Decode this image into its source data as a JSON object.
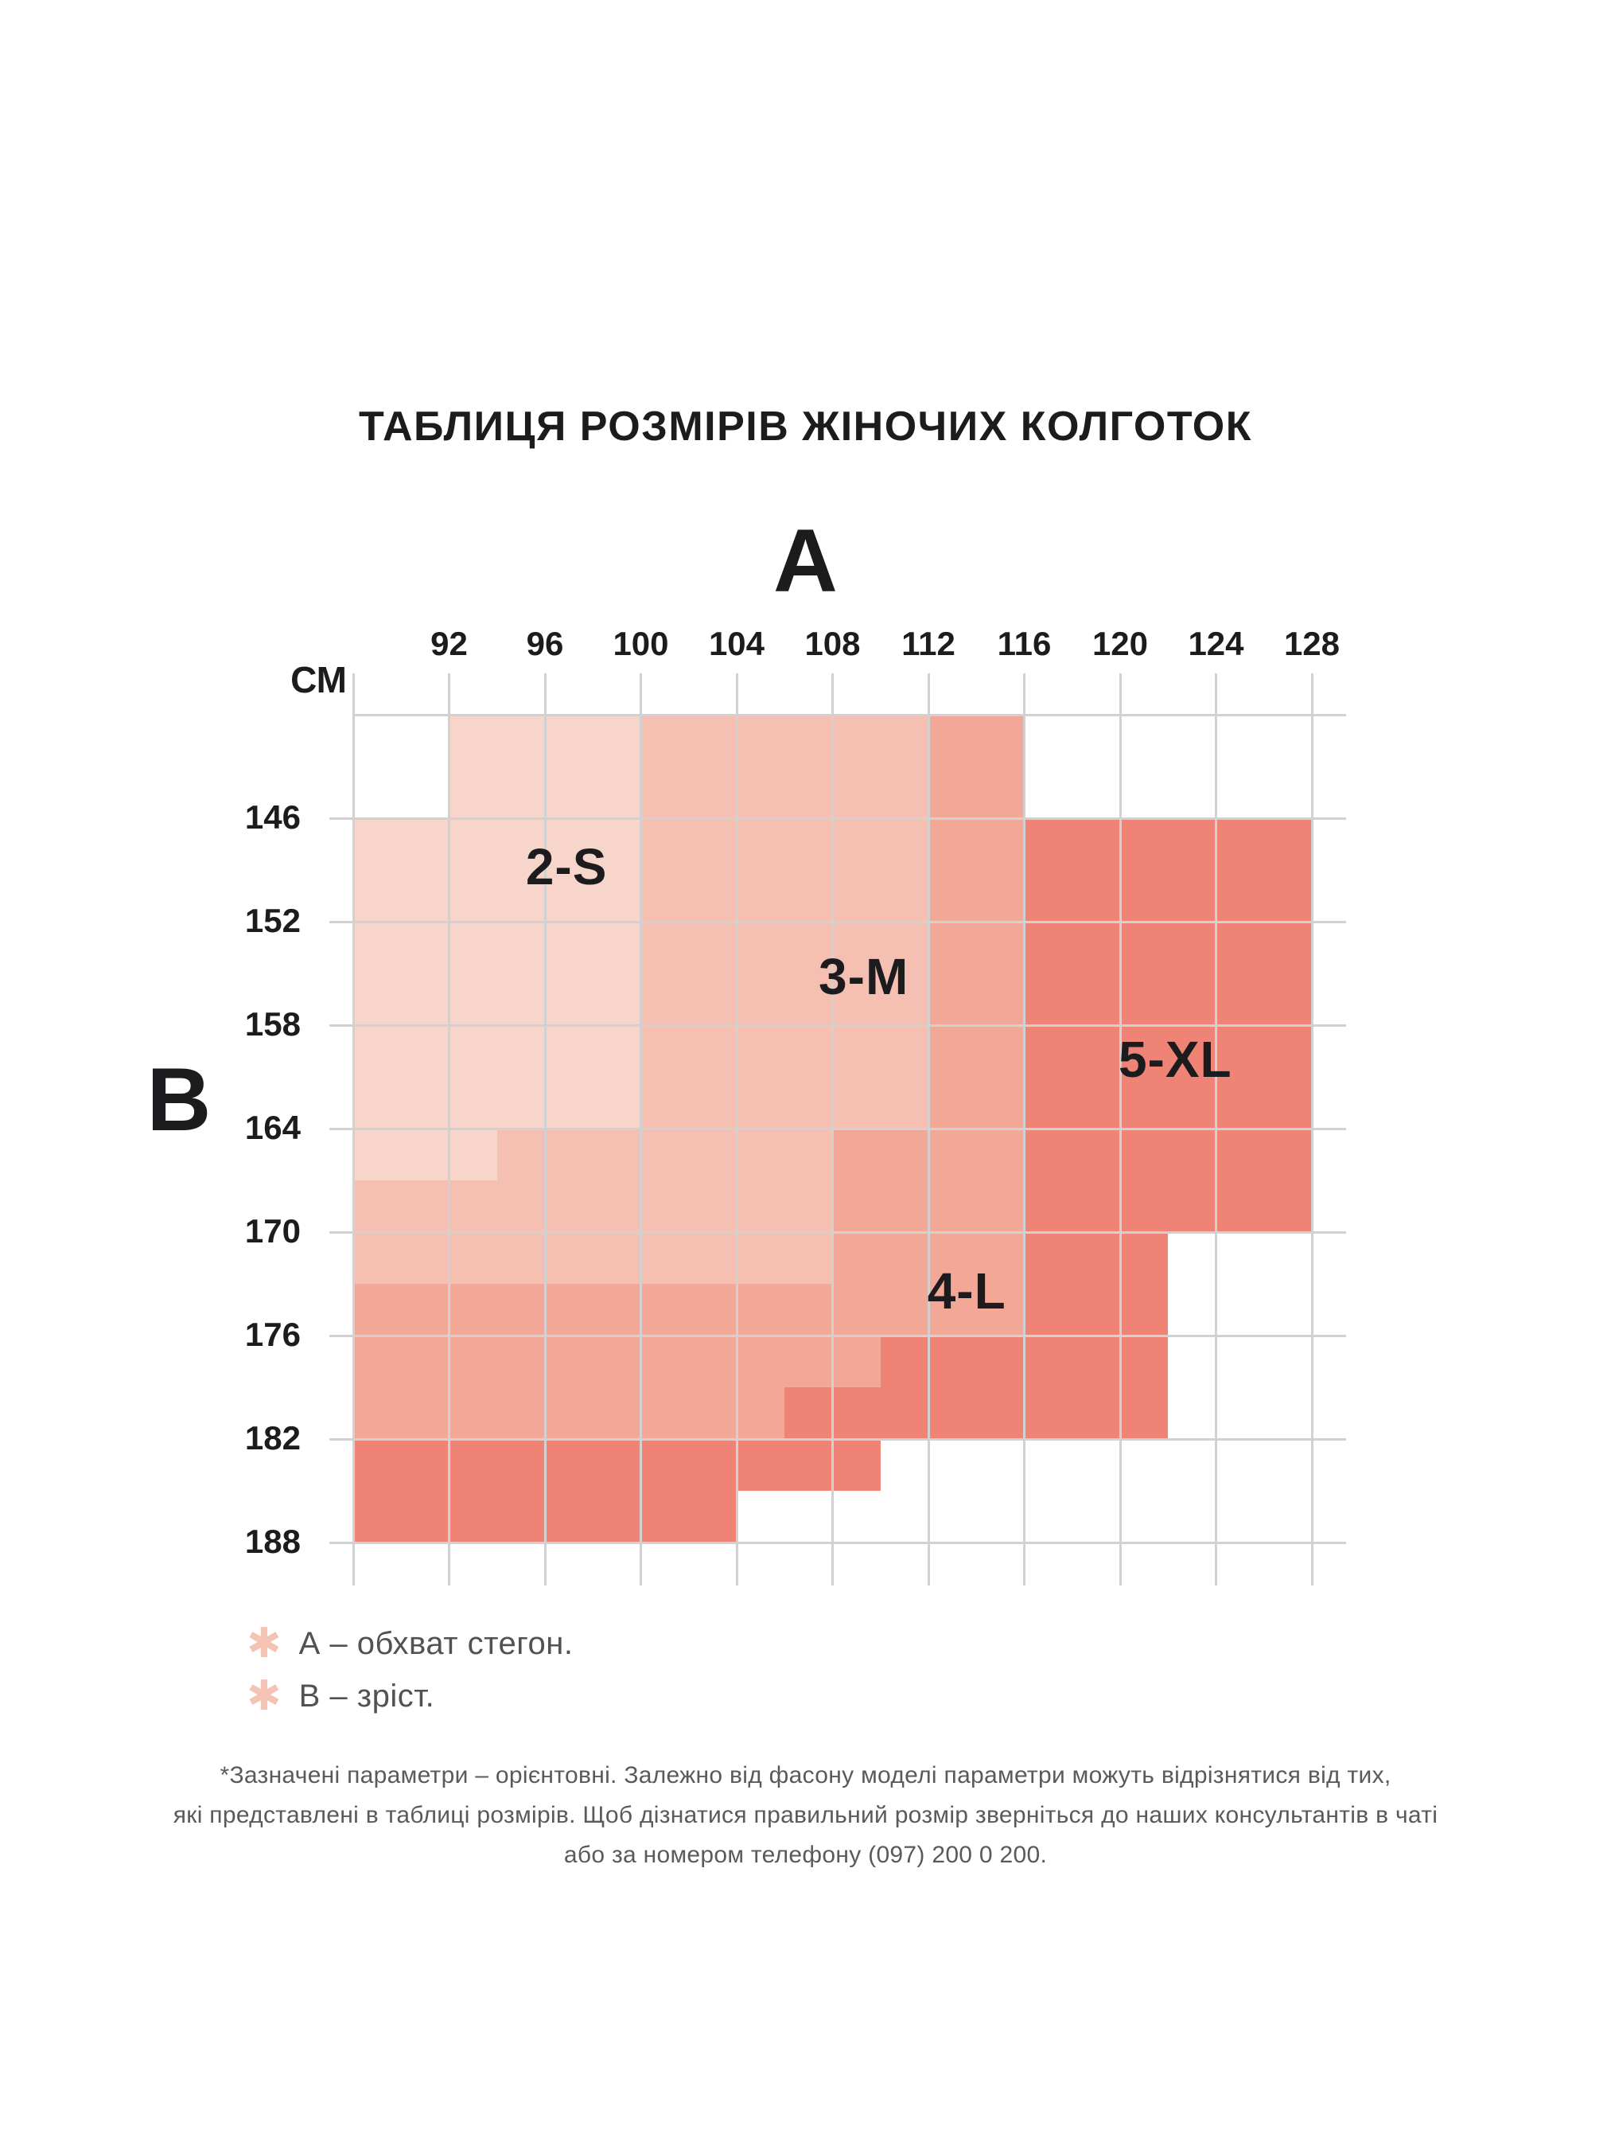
{
  "title": "ТАБЛИЦЯ РОЗМІРІВ ЖІНОЧИХ КОЛГОТОК",
  "axes": {
    "a_label": "А",
    "b_label": "В",
    "unit_label": "СМ"
  },
  "colors": {
    "text_primary": "#1c1c1e",
    "text_secondary": "#525256",
    "text_footnote": "#5a5a5e",
    "grid_line": "#d1d1d1",
    "asterisk": "#f5c3b4",
    "size_s": "#f8d5ca",
    "size_m": "#f5c0b2",
    "size_l": "#f3a797",
    "size_xl": "#ef8476"
  },
  "chart_data": {
    "type": "heatmap",
    "x_axis": {
      "label": "А",
      "unit": "СМ",
      "min": 88,
      "max": 128,
      "ticks": [
        92,
        96,
        100,
        104,
        108,
        112,
        116,
        120,
        124,
        128
      ]
    },
    "y_axis": {
      "label": "В",
      "min": 140,
      "max": 194,
      "ticks": [
        146,
        152,
        158,
        164,
        170,
        176,
        182,
        188
      ]
    },
    "grid_on": true,
    "sizes": [
      {
        "name": "2-S",
        "color": "#f8d5ca",
        "label_x": 96.9,
        "label_y": 148.8,
        "rects": [
          [
            92,
            140,
            100,
            146
          ],
          [
            88,
            146,
            100,
            164
          ],
          [
            88,
            164,
            94,
            167
          ]
        ]
      },
      {
        "name": "3-M",
        "color": "#f5c0b2",
        "label_x": 109.3,
        "label_y": 155.2,
        "rects": [
          [
            100,
            140,
            112,
            146
          ],
          [
            100,
            146,
            112,
            164
          ],
          [
            94,
            164,
            108,
            167
          ],
          [
            88,
            167,
            108,
            173
          ]
        ]
      },
      {
        "name": "4-L",
        "color": "#f3a797",
        "label_x": 113.6,
        "label_y": 173.4,
        "rects": [
          [
            112,
            140,
            116,
            146
          ],
          [
            112,
            146,
            116,
            164
          ],
          [
            108,
            164,
            116,
            173
          ],
          [
            88,
            173,
            116,
            176
          ],
          [
            88,
            176,
            110,
            179
          ],
          [
            88,
            179,
            106,
            182
          ]
        ]
      },
      {
        "name": "5-XL",
        "color": "#ef8476",
        "label_x": 122.3,
        "label_y": 160.0,
        "rects": [
          [
            116,
            146,
            128,
            170
          ],
          [
            116,
            170,
            122,
            176
          ],
          [
            110,
            176,
            122,
            179
          ],
          [
            106,
            179,
            122,
            182
          ],
          [
            88,
            182,
            110,
            185
          ],
          [
            88,
            185,
            104,
            188
          ]
        ]
      }
    ]
  },
  "legend": {
    "items": [
      {
        "icon": "asterisk-icon",
        "text": "А – обхват стегон."
      },
      {
        "icon": "asterisk-icon",
        "text": "В – зріст."
      }
    ]
  },
  "footnote": {
    "lines": [
      "*Зазначені параметри – орієнтовні. Залежно від фасону моделі параметри можуть відрізнятися від тих,",
      "які представлені в таблиці розмірів. Щоб дізнатися правильний розмір зверніться до наших консультантів в чаті",
      "або за номером телефону (097) 200 0 200."
    ]
  }
}
